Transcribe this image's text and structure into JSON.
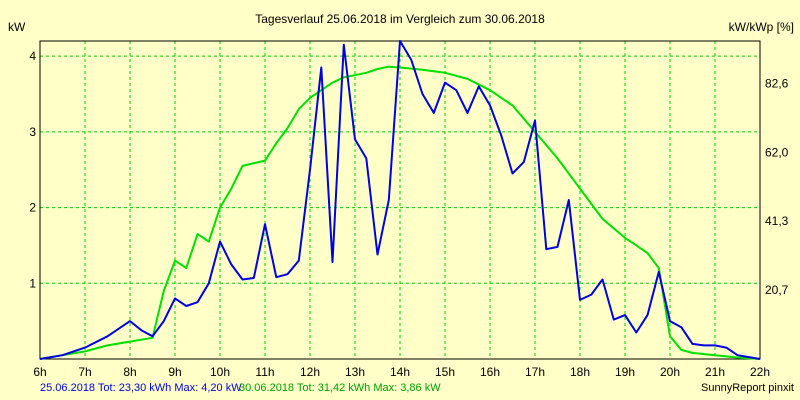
{
  "chart_data": {
    "type": "line",
    "title": "Tagesverlauf 25.06.2018 im Vergleich zum 30.06.2018",
    "ylabel_left": "kW",
    "ylabel_right": "kW/kWp [%]",
    "xlim": [
      6,
      22
    ],
    "ylim": [
      0,
      4.2
    ],
    "grid": true,
    "x_ticks": [
      {
        "x": 6,
        "label": "6h"
      },
      {
        "x": 7,
        "label": "7h"
      },
      {
        "x": 8,
        "label": "8h"
      },
      {
        "x": 9,
        "label": "9h"
      },
      {
        "x": 10,
        "label": "10h"
      },
      {
        "x": 11,
        "label": "11h"
      },
      {
        "x": 12,
        "label": "12h"
      },
      {
        "x": 13,
        "label": "13h"
      },
      {
        "x": 14,
        "label": "14h"
      },
      {
        "x": 15,
        "label": "15h"
      },
      {
        "x": 16,
        "label": "16h"
      },
      {
        "x": 17,
        "label": "17h"
      },
      {
        "x": 18,
        "label": "18h"
      },
      {
        "x": 19,
        "label": "19h"
      },
      {
        "x": 20,
        "label": "20h"
      },
      {
        "x": 21,
        "label": "21h"
      },
      {
        "x": 22,
        "label": "22h"
      }
    ],
    "y_ticks_left": [
      {
        "y": 1,
        "label": "1"
      },
      {
        "y": 2,
        "label": "2"
      },
      {
        "y": 3,
        "label": "3"
      },
      {
        "y": 4,
        "label": "4"
      }
    ],
    "y_ticks_right": [
      {
        "y": 0.91,
        "label": "20,7"
      },
      {
        "y": 1.82,
        "label": "41,3"
      },
      {
        "y": 2.73,
        "label": "62,0"
      },
      {
        "y": 3.64,
        "label": "82,6"
      }
    ],
    "series": [
      {
        "name": "25.06.2018",
        "color": "#0000e0",
        "x": [
          6.0,
          6.5,
          7.0,
          7.5,
          8.0,
          8.25,
          8.5,
          8.75,
          9.0,
          9.25,
          9.5,
          9.75,
          10.0,
          10.25,
          10.5,
          10.75,
          11.0,
          11.25,
          11.5,
          11.75,
          12.0,
          12.25,
          12.5,
          12.75,
          13.0,
          13.25,
          13.5,
          13.75,
          14.0,
          14.25,
          14.5,
          14.75,
          15.0,
          15.25,
          15.5,
          15.75,
          16.0,
          16.25,
          16.5,
          16.75,
          17.0,
          17.25,
          17.5,
          17.75,
          18.0,
          18.25,
          18.5,
          18.75,
          19.0,
          19.25,
          19.5,
          19.75,
          20.0,
          20.25,
          20.5,
          20.75,
          21.0,
          21.25,
          21.5,
          22.0
        ],
        "values": [
          0.0,
          0.05,
          0.15,
          0.3,
          0.5,
          0.38,
          0.3,
          0.5,
          0.8,
          0.7,
          0.75,
          1.0,
          1.55,
          1.25,
          1.05,
          1.07,
          1.78,
          1.08,
          1.12,
          1.3,
          2.5,
          3.85,
          1.28,
          4.15,
          2.9,
          2.65,
          1.38,
          2.1,
          4.2,
          3.95,
          3.5,
          3.25,
          3.65,
          3.55,
          3.25,
          3.6,
          3.35,
          2.95,
          2.45,
          2.6,
          3.15,
          1.45,
          1.48,
          2.1,
          0.78,
          0.85,
          1.05,
          0.52,
          0.58,
          0.35,
          0.58,
          1.15,
          0.5,
          0.42,
          0.2,
          0.18,
          0.18,
          0.15,
          0.05,
          0.0
        ]
      },
      {
        "name": "30.06.2018",
        "color": "#00e000",
        "x": [
          6.0,
          6.5,
          7.0,
          7.5,
          8.0,
          8.5,
          8.75,
          9.0,
          9.25,
          9.5,
          9.75,
          10.0,
          10.25,
          10.5,
          11.0,
          11.25,
          11.5,
          11.75,
          12.0,
          12.25,
          12.5,
          12.75,
          13.0,
          13.25,
          13.5,
          13.75,
          14.0,
          14.5,
          15.0,
          15.5,
          16.0,
          16.5,
          17.0,
          17.5,
          18.0,
          18.5,
          19.0,
          19.25,
          19.5,
          19.75,
          20.0,
          20.25,
          20.5,
          21.0,
          21.5,
          22.0
        ],
        "values": [
          0.0,
          0.05,
          0.1,
          0.18,
          0.23,
          0.28,
          0.9,
          1.3,
          1.2,
          1.65,
          1.55,
          2.0,
          2.25,
          2.55,
          2.62,
          2.85,
          3.05,
          3.3,
          3.45,
          3.55,
          3.65,
          3.72,
          3.75,
          3.78,
          3.83,
          3.86,
          3.85,
          3.82,
          3.78,
          3.7,
          3.55,
          3.35,
          3.0,
          2.65,
          2.25,
          1.85,
          1.6,
          1.5,
          1.4,
          1.2,
          0.3,
          0.12,
          0.08,
          0.05,
          0.02,
          0.0
        ]
      }
    ]
  },
  "footer": {
    "series1_text": "25.06.2018 Tot: 23,30 kWh Max: 4,20 kW",
    "series2_text": "30.06.2018 Tot: 31,42 kWh Max: 3,86 kW",
    "brand": "SunnyReport pinxit",
    "series1_color": "#0000e0",
    "series2_color": "#00a000"
  }
}
